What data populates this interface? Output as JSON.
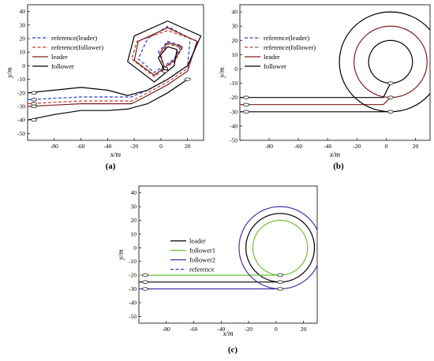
{
  "chart_data": [
    {
      "type": "line",
      "panel_label": "(a)",
      "xlabel": "x/m",
      "ylabel": "y/m",
      "xlim": [
        -100,
        32
      ],
      "ylim": [
        -55,
        45
      ],
      "xticks": [
        -80,
        -60,
        -40,
        -20,
        0,
        20
      ],
      "yticks": [
        -50,
        -40,
        -30,
        -20,
        -10,
        0,
        10,
        20,
        30,
        40
      ],
      "grid": false,
      "legend": "upper-left",
      "legend_entries": [
        "reference(leader)",
        "reference(follower)",
        "leader",
        "follower"
      ],
      "series": [
        {
          "name": "reference(leader)",
          "color": "#2b3fc8",
          "style": "dashed",
          "x": [
            -100,
            -80,
            -60,
            -40,
            -22,
            -10,
            5,
            20,
            22,
            5,
            -10,
            -17,
            -5,
            10,
            15,
            5,
            -2,
            3
          ],
          "y": [
            -25,
            -24,
            -23,
            -23,
            -23,
            -18,
            -10,
            0,
            20,
            29,
            20,
            5,
            -5,
            5,
            15,
            18,
            10,
            -2
          ]
        },
        {
          "name": "reference(follower)",
          "color": "#c83a2b",
          "style": "dashed",
          "x": [
            -100,
            -80,
            -60,
            -40,
            -22,
            -10,
            5,
            20,
            28,
            5,
            -18,
            -22,
            -5,
            10,
            16,
            5,
            0,
            3
          ],
          "y": [
            -28,
            -27,
            -26,
            -26,
            -26,
            -20,
            -12,
            -2,
            18,
            26,
            18,
            5,
            -8,
            3,
            13,
            16,
            8,
            -3
          ]
        },
        {
          "name": "leader",
          "color": "#7a1f1f",
          "style": "solid",
          "x": [
            -100,
            -80,
            -60,
            -40,
            -22,
            -10,
            5,
            20,
            27,
            5,
            -17,
            -20,
            -5,
            10,
            16,
            5,
            -1,
            3
          ],
          "y": [
            -30,
            -29,
            -28,
            -28,
            -28,
            -22,
            -14,
            -4,
            18,
            28,
            18,
            4,
            -7,
            4,
            14,
            17,
            9,
            -2
          ]
        },
        {
          "name": "follower",
          "color": "#000000",
          "style": "solid",
          "x": [
            -100,
            -80,
            -60,
            -40,
            -25,
            -10,
            5,
            20,
            30,
            5,
            -20,
            -25,
            -5,
            10,
            12,
            5,
            -2,
            3
          ],
          "y": [
            -20,
            -18,
            -16,
            -18,
            -22,
            -18,
            -10,
            0,
            22,
            33,
            22,
            3,
            -12,
            0,
            12,
            14,
            6,
            -4
          ]
        },
        {
          "name": "follower",
          "color": "#000000",
          "style": "solid",
          "x": [
            -100,
            -80,
            -60,
            -40,
            -25,
            -10,
            5,
            20
          ],
          "y": [
            -40,
            -36,
            -33,
            -33,
            -32,
            -28,
            -20,
            -10
          ]
        }
      ]
    },
    {
      "type": "line",
      "panel_label": "(b)",
      "xlabel": "x/m",
      "ylabel": "y/m",
      "xlim": [
        -100,
        30
      ],
      "ylim": [
        -50,
        45
      ],
      "xticks": [
        -80,
        -60,
        -40,
        -20,
        0,
        20
      ],
      "yticks": [
        -50,
        -40,
        -30,
        -20,
        -10,
        0,
        10,
        20,
        30,
        40
      ],
      "grid": false,
      "legend": "upper-left",
      "legend_entries": [
        "reference(leader)",
        "reference(follower)",
        "leader",
        "follower"
      ],
      "series": [
        {
          "name": "leader",
          "color": "#7a1f1f",
          "style": "solid",
          "center": [
            3,
            5
          ],
          "radius": 25,
          "baseline_y": -25
        },
        {
          "name": "follower",
          "color": "#000000",
          "style": "solid",
          "center": [
            3,
            5
          ],
          "radius": 15,
          "baseline_y": -20
        },
        {
          "name": "follower",
          "color": "#000000",
          "style": "solid",
          "center": [
            3,
            5
          ],
          "radius": 35,
          "baseline_y": -30
        }
      ]
    },
    {
      "type": "line",
      "panel_label": "(c)",
      "xlabel": "x/m",
      "ylabel": "y/m",
      "xlim": [
        -100,
        30
      ],
      "ylim": [
        -55,
        45
      ],
      "xticks": [
        -80,
        -60,
        -40,
        -20,
        0,
        20
      ],
      "yticks": [
        -50,
        -40,
        -30,
        -20,
        -10,
        0,
        10,
        20,
        30,
        40
      ],
      "grid": false,
      "legend": "center-left",
      "legend_entries": [
        "leader",
        "follower1",
        "follower2",
        "reference"
      ],
      "series": [
        {
          "name": "leader",
          "color": "#000000",
          "style": "solid",
          "center": [
            3,
            0
          ],
          "radius": 25,
          "baseline_y": -25
        },
        {
          "name": "follower1",
          "color": "#6bbf3a",
          "style": "solid",
          "center": [
            3,
            0
          ],
          "radius": 20,
          "baseline_y": -20
        },
        {
          "name": "follower2",
          "color": "#4b2fa8",
          "style": "solid",
          "center": [
            3,
            0
          ],
          "radius": 30,
          "baseline_y": -30
        }
      ]
    }
  ]
}
